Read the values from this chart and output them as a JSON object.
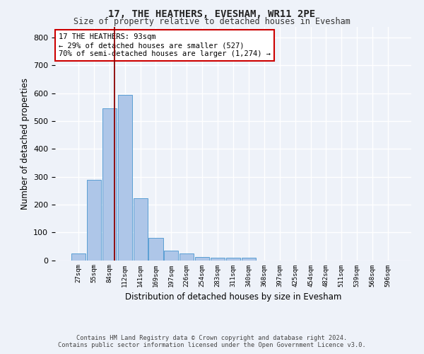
{
  "title": "17, THE HEATHERS, EVESHAM, WR11 2PE",
  "subtitle": "Size of property relative to detached houses in Evesham",
  "xlabel": "Distribution of detached houses by size in Evesham",
  "ylabel": "Number of detached properties",
  "bar_labels": [
    "27sqm",
    "55sqm",
    "84sqm",
    "112sqm",
    "141sqm",
    "169sqm",
    "197sqm",
    "226sqm",
    "254sqm",
    "283sqm",
    "311sqm",
    "340sqm",
    "368sqm",
    "397sqm",
    "425sqm",
    "454sqm",
    "482sqm",
    "511sqm",
    "539sqm",
    "568sqm",
    "596sqm"
  ],
  "bar_values": [
    25,
    290,
    547,
    595,
    222,
    80,
    35,
    25,
    12,
    8,
    8,
    8,
    0,
    0,
    0,
    0,
    0,
    0,
    0,
    0,
    0
  ],
  "bar_color": "#aec6e8",
  "bar_edge_color": "#5a9fd4",
  "annotation_line1": "17 THE HEATHERS: 93sqm",
  "annotation_line2": "← 29% of detached houses are smaller (527)",
  "annotation_line3": "70% of semi-detached houses are larger (1,274) →",
  "ylim": [
    0,
    840
  ],
  "yticks": [
    0,
    100,
    200,
    300,
    400,
    500,
    600,
    700,
    800
  ],
  "background_color": "#eef2f9",
  "grid_color": "#ffffff",
  "footer_line1": "Contains HM Land Registry data © Crown copyright and database right 2024.",
  "footer_line2": "Contains public sector information licensed under the Open Government Licence v3.0."
}
